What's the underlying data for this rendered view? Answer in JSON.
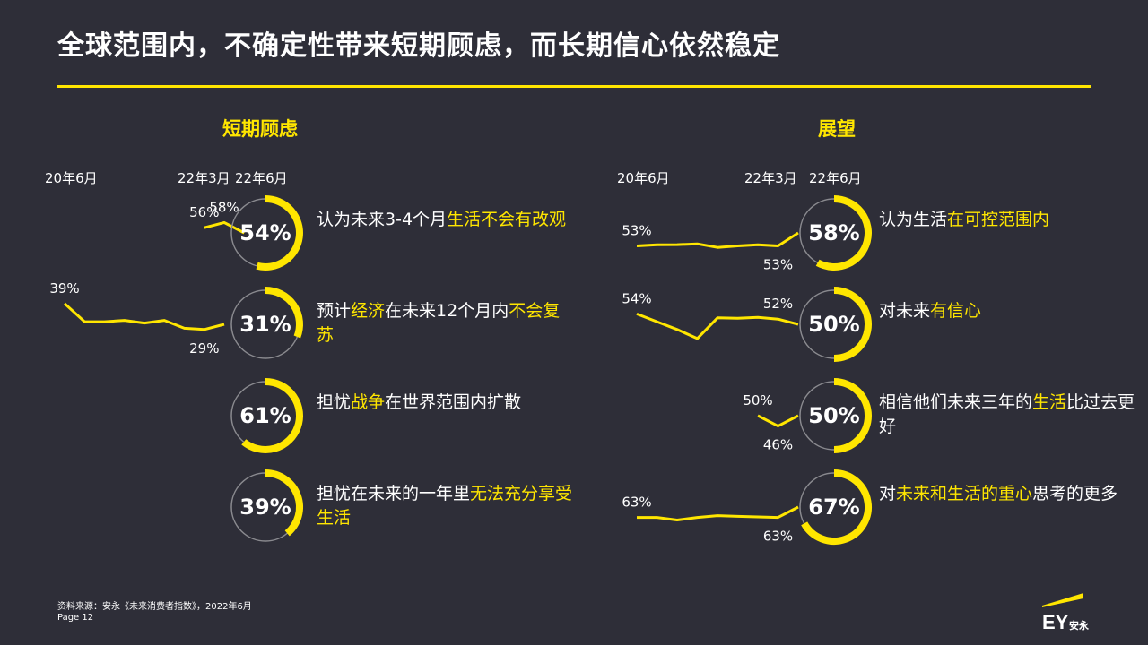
{
  "title": "全球范围内，不确定性带来短期顾虑，而长期信心依然稳定",
  "footer": {
    "source": "资料来源：安永《未来消费者指数》，2022年6月",
    "page": "Page 12"
  },
  "logo": {
    "text": "安永",
    "mark": "EY"
  },
  "colors": {
    "accent": "#ffe600",
    "background": "#2e2e38",
    "ring_track": "#8a8a8f"
  },
  "chart_data": [
    {
      "type": "line",
      "section_title": "短期顾虑",
      "date_labels": [
        "20年6月",
        "22年3月",
        "22年6月"
      ],
      "rows": [
        {
          "value": 54,
          "value_label": "54%",
          "segments": [
            {
              "text": "认为未来3-4个月",
              "hl": false
            },
            {
              "text": "生活不会有改观",
              "hl": true
            }
          ],
          "series": [
            56,
            58,
            54
          ],
          "start_index": 7,
          "point_labels": [
            {
              "index": 7,
              "text": "56%"
            },
            {
              "index": 8,
              "text": "58%"
            }
          ]
        },
        {
          "value": 31,
          "value_label": "31%",
          "segments": [
            {
              "text": "预计",
              "hl": false
            },
            {
              "text": "经济",
              "hl": true
            },
            {
              "text": "在未来12个月内",
              "hl": false
            },
            {
              "text": "不会复苏",
              "hl": true
            }
          ],
          "series": [
            39,
            32,
            32,
            32.5,
            31.5,
            32.5,
            29.5,
            29,
            31
          ],
          "start_index": 0,
          "point_labels": [
            {
              "index": 0,
              "text": "39%"
            },
            {
              "index": 7,
              "text": "29%"
            }
          ]
        },
        {
          "value": 61,
          "value_label": "61%",
          "segments": [
            {
              "text": "担忧",
              "hl": false
            },
            {
              "text": "战争",
              "hl": true
            },
            {
              "text": "在世界范围内扩散",
              "hl": false
            }
          ],
          "series": [],
          "start_index": 8,
          "point_labels": []
        },
        {
          "value": 39,
          "value_label": "39%",
          "segments": [
            {
              "text": "担忧在未来的一年里",
              "hl": false
            },
            {
              "text": "无法充分享受生活",
              "hl": true
            }
          ],
          "series": [],
          "start_index": 8,
          "point_labels": []
        }
      ]
    },
    {
      "type": "line",
      "section_title": "展望",
      "date_labels": [
        "20年6月",
        "22年3月",
        "22年6月"
      ],
      "rows": [
        {
          "value": 58,
          "value_label": "58%",
          "segments": [
            {
              "text": "认为生活",
              "hl": false
            },
            {
              "text": "在可控范围内",
              "hl": true
            }
          ],
          "series": [
            53,
            53.4,
            53.5,
            53.8,
            52.4,
            53,
            53.4,
            53,
            58
          ],
          "start_index": 0,
          "point_labels": [
            {
              "index": 0,
              "text": "53%"
            },
            {
              "index": 7,
              "text": "53%"
            }
          ]
        },
        {
          "value": 50,
          "value_label": "50%",
          "segments": [
            {
              "text": "对未来",
              "hl": false
            },
            {
              "text": "有信心",
              "hl": true
            }
          ],
          "series": [
            54,
            51,
            48,
            44.5,
            52.5,
            52.3,
            52.7,
            52,
            50
          ],
          "start_index": 0,
          "point_labels": [
            {
              "index": 0,
              "text": "54%"
            },
            {
              "index": 7,
              "text": "52%"
            }
          ]
        },
        {
          "value": 50,
          "value_label": "50%",
          "segments": [
            {
              "text": "相信他们未来三年的",
              "hl": false
            },
            {
              "text": "生活",
              "hl": true
            },
            {
              "text": "比过去更好",
              "hl": false
            }
          ],
          "series": [
            50,
            46,
            50
          ],
          "start_index": 6,
          "point_labels": [
            {
              "index": 6,
              "text": "50%"
            },
            {
              "index": 7,
              "text": "46%"
            }
          ]
        },
        {
          "value": 67,
          "value_label": "67%",
          "segments": [
            {
              "text": "对",
              "hl": false
            },
            {
              "text": "未来和生活的重心",
              "hl": true
            },
            {
              "text": "思考的更多",
              "hl": false
            }
          ],
          "series": [
            63,
            63,
            62,
            63,
            63.7,
            63.4,
            63.2,
            63,
            67
          ],
          "start_index": 0,
          "point_labels": [
            {
              "index": 0,
              "text": "63%"
            },
            {
              "index": 7,
              "text": "63%"
            }
          ]
        }
      ]
    }
  ]
}
